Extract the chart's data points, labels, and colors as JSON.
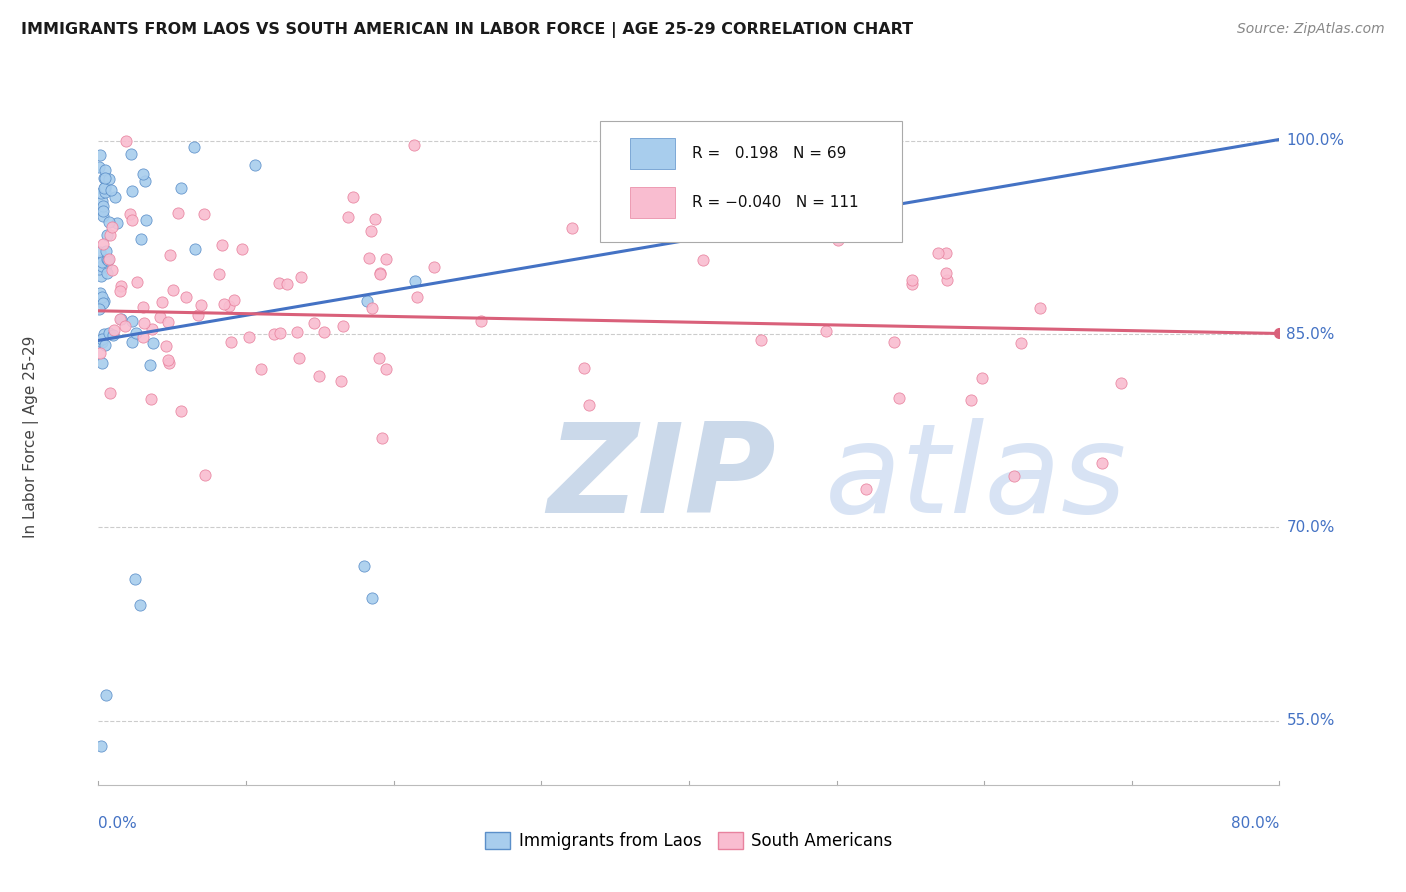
{
  "title": "IMMIGRANTS FROM LAOS VS SOUTH AMERICAN IN LABOR FORCE | AGE 25-29 CORRELATION CHART",
  "source": "Source: ZipAtlas.com",
  "ylabel": "In Labor Force | Age 25-29",
  "yticks": [
    0.55,
    0.7,
    0.85,
    1.0
  ],
  "ytick_labels": [
    "55.0%",
    "70.0%",
    "85.0%",
    "100.0%"
  ],
  "xlim": [
    0.0,
    0.8
  ],
  "ylim": [
    0.5,
    1.04
  ],
  "laos_R": 0.198,
  "laos_N": 69,
  "south_R": -0.04,
  "south_N": 111,
  "laos_color": "#A8CDED",
  "south_color": "#F9BDD0",
  "laos_edge_color": "#5B8FC9",
  "south_edge_color": "#E8829E",
  "laos_line_color": "#4472C4",
  "south_line_color": "#D9607A",
  "watermark": "ZIPatlas",
  "watermark_color_zip": "#B8CEE8",
  "watermark_color_atlas": "#C8D8F0",
  "title_color": "#1A1A1A",
  "axis_label_color": "#4472C4",
  "right_label_color": "#4472C4",
  "background_color": "#FFFFFF",
  "grid_color": "#CCCCCC",
  "laos_line_intercept": 0.845,
  "laos_line_slope": 0.195,
  "south_line_intercept": 0.868,
  "south_line_slope": -0.022
}
